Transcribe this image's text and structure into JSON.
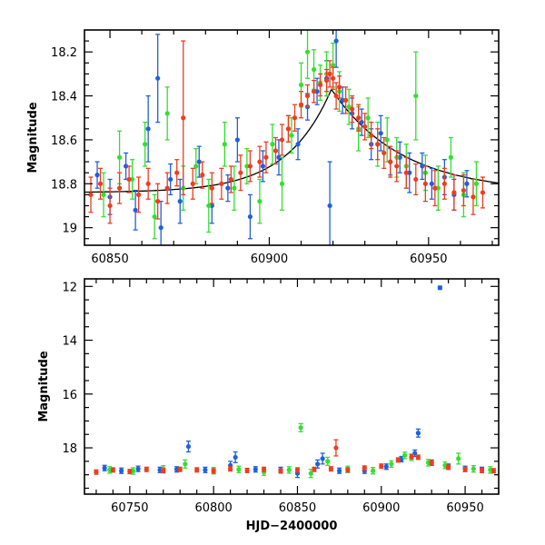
{
  "chart_data": [
    {
      "type": "scatter",
      "title": "",
      "xlabel": "",
      "ylabel": "Magnitude",
      "xlim": [
        60842,
        60972
      ],
      "ylim": [
        19.08,
        18.1
      ],
      "x_ticks": [
        60850,
        60900,
        60950
      ],
      "y_ticks": [
        18.2,
        18.4,
        18.6,
        18.8,
        19
      ],
      "x_tick_labels": [
        "60850",
        "60900",
        "60950"
      ],
      "y_tick_labels": [
        "18.2",
        "18.4",
        "18.6",
        "18.8",
        "19"
      ],
      "model": {
        "name": "model fit",
        "t0": 60919.5,
        "peak_mag": 18.37,
        "base_mag": 18.84,
        "rise_days": 14,
        "decay_days": 22,
        "color": "#000000"
      },
      "series": [
        {
          "name": "blue",
          "color": "#1f5fe0",
          "points": [
            [
              60846,
              18.76,
              0.06
            ],
            [
              60850,
              18.86,
              0.08
            ],
            [
              60855,
              18.72,
              0.06
            ],
            [
              60858,
              18.92,
              0.09
            ],
            [
              60862,
              18.55,
              0.15
            ],
            [
              60865,
              18.32,
              0.2
            ],
            [
              60866,
              19.0,
              0.12
            ],
            [
              60869,
              18.78,
              0.07
            ],
            [
              60872,
              18.88,
              0.1
            ],
            [
              60878,
              18.7,
              0.07
            ],
            [
              60882,
              18.9,
              0.08
            ],
            [
              60887,
              18.82,
              0.06
            ],
            [
              60890,
              18.6,
              0.1
            ],
            [
              60894,
              18.95,
              0.1
            ],
            [
              60898,
              18.72,
              0.07
            ],
            [
              60903,
              18.68,
              0.08
            ],
            [
              60906,
              18.55,
              0.06
            ],
            [
              60909,
              18.62,
              0.07
            ],
            [
              60912,
              18.45,
              0.06
            ],
            [
              60915,
              18.38,
              0.06
            ],
            [
              60918,
              18.32,
              0.08
            ],
            [
              60919,
              18.9,
              0.2
            ],
            [
              60921,
              18.15,
              0.12
            ],
            [
              60923,
              18.42,
              0.06
            ],
            [
              60926,
              18.48,
              0.07
            ],
            [
              60929,
              18.52,
              0.06
            ],
            [
              60932,
              18.62,
              0.07
            ],
            [
              60935,
              18.57,
              0.08
            ],
            [
              60938,
              18.7,
              0.06
            ],
            [
              60941,
              18.68,
              0.07
            ],
            [
              60944,
              18.75,
              0.09
            ],
            [
              60948,
              18.72,
              0.06
            ],
            [
              60951,
              18.8,
              0.07
            ],
            [
              60955,
              18.77,
              0.08
            ],
            [
              60958,
              18.85,
              0.07
            ],
            [
              60962,
              18.8,
              0.06
            ]
          ]
        },
        {
          "name": "green",
          "color": "#33e02e",
          "points": [
            [
              60848,
              18.85,
              0.1
            ],
            [
              60853,
              18.68,
              0.12
            ],
            [
              60857,
              18.78,
              0.09
            ],
            [
              60861,
              18.62,
              0.1
            ],
            [
              60864,
              18.95,
              0.1
            ],
            [
              60868,
              18.48,
              0.12
            ],
            [
              60873,
              18.82,
              0.1
            ],
            [
              60877,
              18.72,
              0.08
            ],
            [
              60881,
              18.9,
              0.12
            ],
            [
              60886,
              18.62,
              0.1
            ],
            [
              60889,
              18.82,
              0.1
            ],
            [
              60893,
              18.72,
              0.08
            ],
            [
              60897,
              18.88,
              0.1
            ],
            [
              60901,
              18.62,
              0.09
            ],
            [
              60904,
              18.8,
              0.12
            ],
            [
              60907,
              18.58,
              0.08
            ],
            [
              60910,
              18.35,
              0.1
            ],
            [
              60912,
              18.2,
              0.12
            ],
            [
              60914,
              18.28,
              0.09
            ],
            [
              60916,
              18.34,
              0.08
            ],
            [
              60918,
              18.3,
              0.1
            ],
            [
              60920,
              18.26,
              0.1
            ],
            [
              60922,
              18.38,
              0.09
            ],
            [
              60925,
              18.45,
              0.08
            ],
            [
              60928,
              18.55,
              0.1
            ],
            [
              60931,
              18.5,
              0.09
            ],
            [
              60934,
              18.62,
              0.1
            ],
            [
              60937,
              18.6,
              0.1
            ],
            [
              60940,
              18.68,
              0.09
            ],
            [
              60943,
              18.72,
              0.1
            ],
            [
              60946,
              18.4,
              0.2
            ],
            [
              60949,
              18.75,
              0.08
            ],
            [
              60953,
              18.82,
              0.1
            ],
            [
              60957,
              18.68,
              0.09
            ],
            [
              60961,
              18.85,
              0.1
            ],
            [
              60965,
              18.8,
              0.1
            ]
          ]
        },
        {
          "name": "red",
          "color": "#f03c1e",
          "points": [
            [
              60844,
              18.85,
              0.08
            ],
            [
              60847,
              18.8,
              0.07
            ],
            [
              60850,
              18.9,
              0.08
            ],
            [
              60853,
              18.82,
              0.07
            ],
            [
              60856,
              18.78,
              0.06
            ],
            [
              60859,
              18.85,
              0.08
            ],
            [
              60862,
              18.8,
              0.07
            ],
            [
              60865,
              18.88,
              0.08
            ],
            [
              60868,
              18.82,
              0.07
            ],
            [
              60871,
              18.75,
              0.06
            ],
            [
              60873,
              18.5,
              0.35
            ],
            [
              60876,
              18.8,
              0.07
            ],
            [
              60879,
              18.76,
              0.06
            ],
            [
              60882,
              18.82,
              0.07
            ],
            [
              60885,
              18.8,
              0.07
            ],
            [
              60888,
              18.78,
              0.06
            ],
            [
              60891,
              18.75,
              0.08
            ],
            [
              60894,
              18.72,
              0.07
            ],
            [
              60897,
              18.7,
              0.07
            ],
            [
              60899,
              18.68,
              0.07
            ],
            [
              60902,
              18.65,
              0.06
            ],
            [
              60904,
              18.6,
              0.07
            ],
            [
              60906,
              18.55,
              0.06
            ],
            [
              60908,
              18.5,
              0.06
            ],
            [
              60910,
              18.44,
              0.06
            ],
            [
              60912,
              18.4,
              0.05
            ],
            [
              60914,
              18.38,
              0.05
            ],
            [
              60916,
              18.35,
              0.05
            ],
            [
              60918,
              18.33,
              0.05
            ],
            [
              60919,
              18.3,
              0.06
            ],
            [
              60920,
              18.32,
              0.05
            ],
            [
              60921,
              18.4,
              0.06
            ],
            [
              60922,
              18.36,
              0.05
            ],
            [
              60924,
              18.42,
              0.06
            ],
            [
              60926,
              18.46,
              0.06
            ],
            [
              60928,
              18.5,
              0.06
            ],
            [
              60930,
              18.54,
              0.06
            ],
            [
              60932,
              18.58,
              0.06
            ],
            [
              60934,
              18.62,
              0.07
            ],
            [
              60936,
              18.66,
              0.07
            ],
            [
              60938,
              18.7,
              0.07
            ],
            [
              60940,
              18.72,
              0.07
            ],
            [
              60943,
              18.75,
              0.07
            ],
            [
              60946,
              18.78,
              0.07
            ],
            [
              60949,
              18.8,
              0.08
            ],
            [
              60952,
              18.82,
              0.08
            ],
            [
              60955,
              18.8,
              0.07
            ],
            [
              60958,
              18.84,
              0.08
            ],
            [
              60961,
              18.83,
              0.07
            ],
            [
              60964,
              18.86,
              0.08
            ],
            [
              60967,
              18.84,
              0.07
            ]
          ]
        }
      ]
    },
    {
      "type": "scatter",
      "title": "",
      "xlabel": "HJD−2400000",
      "ylabel": "Magnitude",
      "xlim": [
        60723,
        60970
      ],
      "ylim": [
        19.72,
        11.72
      ],
      "x_ticks": [
        60750,
        60800,
        60850,
        60900,
        60950
      ],
      "y_ticks": [
        12,
        14,
        16,
        18
      ],
      "x_tick_labels": [
        "60750",
        "60800",
        "60850",
        "60900",
        "60950"
      ],
      "y_tick_labels": [
        "12",
        "14",
        "16",
        "18"
      ],
      "series": [
        {
          "name": "blue",
          "color": "#1f5fe0",
          "points": [
            [
              60935,
              12.05,
              0.06
            ],
            [
              60735,
              18.75,
              0.1
            ],
            [
              60745,
              18.85,
              0.1
            ],
            [
              60755,
              18.78,
              0.1
            ],
            [
              60768,
              18.82,
              0.1
            ],
            [
              60778,
              18.8,
              0.1
            ],
            [
              60785,
              17.95,
              0.2
            ],
            [
              60795,
              18.82,
              0.1
            ],
            [
              60810,
              18.65,
              0.15
            ],
            [
              60813,
              18.35,
              0.2
            ],
            [
              60825,
              18.8,
              0.1
            ],
            [
              60840,
              18.82,
              0.1
            ],
            [
              60850,
              18.95,
              0.15
            ],
            [
              60862,
              18.6,
              0.15
            ],
            [
              60865,
              18.4,
              0.2
            ],
            [
              60875,
              18.85,
              0.1
            ],
            [
              60890,
              18.85,
              0.1
            ],
            [
              60903,
              18.7,
              0.1
            ],
            [
              60912,
              18.42,
              0.1
            ],
            [
              60920,
              18.2,
              0.12
            ],
            [
              60922,
              17.45,
              0.15
            ],
            [
              60930,
              18.55,
              0.1
            ],
            [
              60940,
              18.7,
              0.1
            ],
            [
              60950,
              18.78,
              0.1
            ],
            [
              60960,
              18.82,
              0.1
            ]
          ]
        },
        {
          "name": "green",
          "color": "#33e02e",
          "points": [
            [
              60738,
              18.82,
              0.12
            ],
            [
              60752,
              18.86,
              0.12
            ],
            [
              60770,
              18.78,
              0.12
            ],
            [
              60783,
              18.6,
              0.15
            ],
            [
              60800,
              18.85,
              0.12
            ],
            [
              60815,
              18.8,
              0.12
            ],
            [
              60830,
              18.9,
              0.12
            ],
            [
              60845,
              18.82,
              0.12
            ],
            [
              60852,
              17.25,
              0.15
            ],
            [
              60858,
              18.95,
              0.15
            ],
            [
              60868,
              18.5,
              0.15
            ],
            [
              60880,
              18.8,
              0.12
            ],
            [
              60895,
              18.85,
              0.12
            ],
            [
              60906,
              18.6,
              0.12
            ],
            [
              60914,
              18.28,
              0.12
            ],
            [
              60918,
              18.35,
              0.12
            ],
            [
              60928,
              18.55,
              0.12
            ],
            [
              60938,
              18.65,
              0.12
            ],
            [
              60946,
              18.4,
              0.2
            ],
            [
              60955,
              18.78,
              0.12
            ],
            [
              60965,
              18.82,
              0.12
            ]
          ]
        },
        {
          "name": "red",
          "color": "#f03c1e",
          "points": [
            [
              60730,
              18.9,
              0.08
            ],
            [
              60740,
              18.82,
              0.08
            ],
            [
              60750,
              18.88,
              0.08
            ],
            [
              60760,
              18.8,
              0.08
            ],
            [
              60770,
              18.85,
              0.08
            ],
            [
              60780,
              18.8,
              0.08
            ],
            [
              60790,
              18.82,
              0.08
            ],
            [
              60800,
              18.86,
              0.08
            ],
            [
              60810,
              18.78,
              0.08
            ],
            [
              60820,
              18.84,
              0.08
            ],
            [
              60830,
              18.8,
              0.08
            ],
            [
              60840,
              18.86,
              0.08
            ],
            [
              60850,
              18.82,
              0.08
            ],
            [
              60860,
              18.8,
              0.08
            ],
            [
              60870,
              18.78,
              0.08
            ],
            [
              60873,
              18.0,
              0.3
            ],
            [
              60880,
              18.82,
              0.08
            ],
            [
              60890,
              18.75,
              0.08
            ],
            [
              60900,
              18.68,
              0.08
            ],
            [
              60910,
              18.45,
              0.08
            ],
            [
              60918,
              18.33,
              0.08
            ],
            [
              60922,
              18.35,
              0.08
            ],
            [
              60930,
              18.55,
              0.08
            ],
            [
              60940,
              18.72,
              0.08
            ],
            [
              60950,
              18.8,
              0.08
            ],
            [
              60960,
              18.84,
              0.08
            ],
            [
              60967,
              18.85,
              0.08
            ]
          ]
        }
      ]
    }
  ]
}
